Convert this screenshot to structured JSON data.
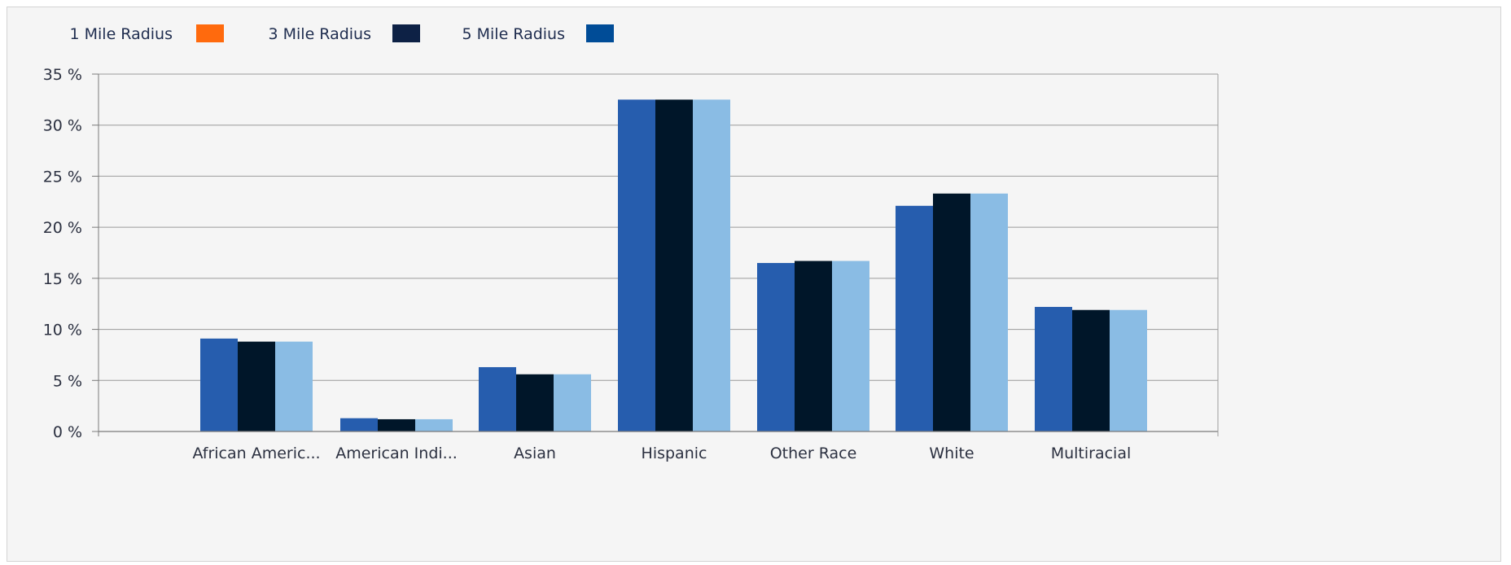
{
  "chart_data": {
    "type": "bar",
    "title": "",
    "xlabel": "",
    "ylabel": "",
    "categories": [
      "African Americ...",
      "American Indi...",
      "Asian",
      "Hispanic",
      "Other Race",
      "White",
      "Multiracial"
    ],
    "series": [
      {
        "name": "1 Mile Radius",
        "values": [
          9.1,
          1.3,
          6.3,
          32.5,
          16.5,
          22.1,
          12.2
        ],
        "bar_color": "#265dae",
        "legend_color": "#ff6a0d"
      },
      {
        "name": "3 Mile Radius",
        "values": [
          8.8,
          1.2,
          5.6,
          32.5,
          16.7,
          23.3,
          11.9
        ],
        "bar_color": "#001629",
        "legend_color": "#0d2145"
      },
      {
        "name": "5 Mile Radius",
        "values": [
          8.8,
          1.2,
          5.6,
          32.5,
          16.7,
          23.3,
          11.9
        ],
        "bar_color": "#8abce4",
        "legend_color": "#004c97"
      }
    ],
    "ylim": [
      0,
      35
    ],
    "y_ticks": [
      0,
      5,
      10,
      15,
      20,
      25,
      30,
      35
    ],
    "y_tick_labels": [
      "0 %",
      "5 %",
      "10 %",
      "15 %",
      "20 %",
      "25 %",
      "30 %",
      "35 %"
    ],
    "grid": true,
    "legend_position": "top-left"
  }
}
